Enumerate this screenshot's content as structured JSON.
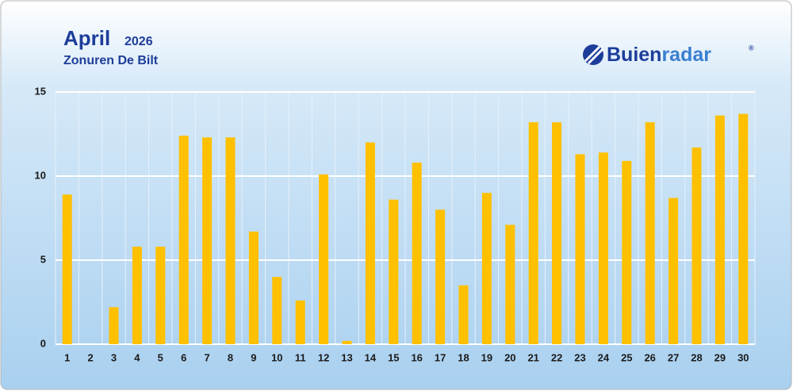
{
  "chart_data": {
    "type": "bar",
    "title": "April",
    "title_year": "2026",
    "subtitle": "Zonuren De Bilt",
    "brand_parts": [
      "Buien",
      "radar"
    ],
    "brand_mark": "®",
    "categories": [
      "1",
      "2",
      "3",
      "4",
      "5",
      "6",
      "7",
      "8",
      "9",
      "10",
      "11",
      "12",
      "13",
      "14",
      "15",
      "16",
      "17",
      "18",
      "19",
      "20",
      "21",
      "22",
      "23",
      "24",
      "25",
      "26",
      "27",
      "28",
      "29",
      "30"
    ],
    "values": [
      8.9,
      0,
      2.2,
      5.8,
      5.8,
      12.4,
      12.3,
      12.3,
      6.7,
      4.0,
      2.6,
      10.1,
      0.2,
      12.0,
      8.6,
      10.8,
      8.0,
      3.5,
      9.0,
      7.1,
      13.2,
      13.2,
      11.3,
      11.4,
      10.9,
      13.2,
      8.7,
      11.7,
      13.6,
      13.7
    ],
    "color": "#ffc000",
    "ylim": [
      0,
      15
    ],
    "yticks": [
      0,
      5,
      10,
      15
    ],
    "grid": true
  }
}
